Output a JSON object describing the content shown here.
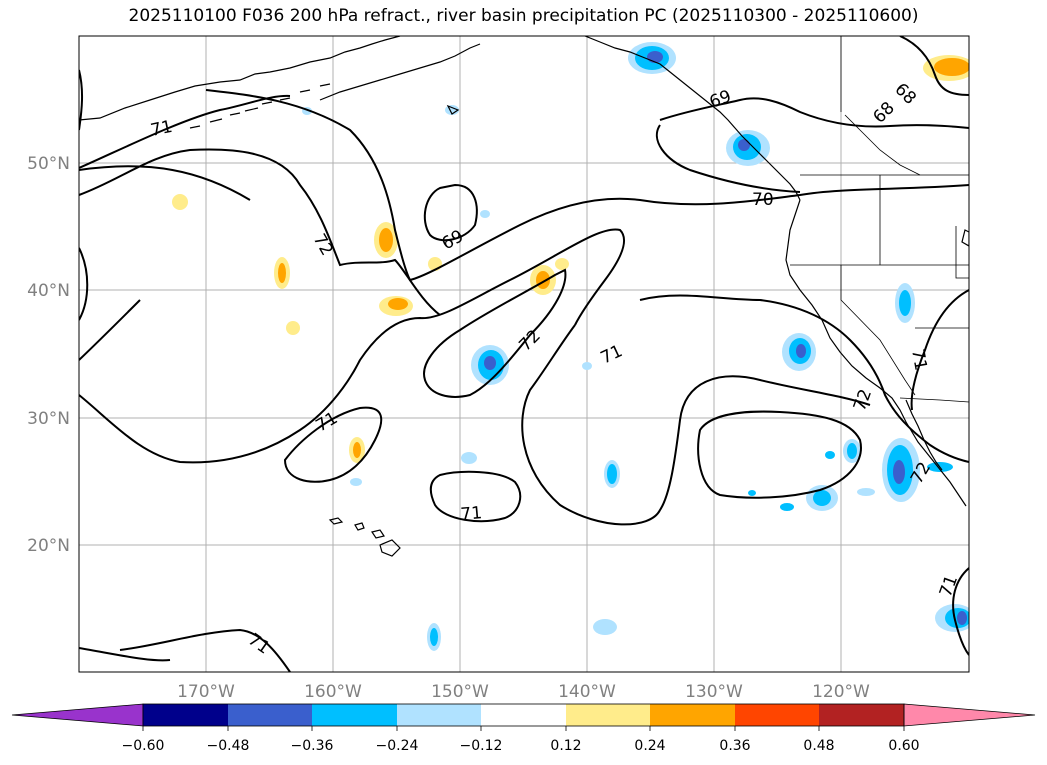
{
  "title": "2025110100 F036 200 hPa refract., river basin precipitation PC (2025110300 - 2025110600)",
  "lat_labels": [
    "50°N",
    "40°N",
    "30°N",
    "20°N"
  ],
  "lon_labels": [
    "170°W",
    "160°W",
    "150°W",
    "140°W",
    "130°W",
    "120°W"
  ],
  "contour_labels": [
    "71",
    "72",
    "69",
    "72",
    "71",
    "70",
    "69",
    "68",
    "68",
    "71",
    "71",
    "72",
    "71",
    "71",
    "72",
    "71"
  ],
  "colorbar": {
    "ticks": [
      "−0.60",
      "−0.48",
      "−0.36",
      "−0.24",
      "−0.12",
      "0.12",
      "0.24",
      "0.36",
      "0.48",
      "0.60"
    ],
    "colors": [
      "#9933cc",
      "#00008b",
      "#3a5fcd",
      "#00bfff",
      "#b0e2ff",
      "#ffffff",
      "#ffec8b",
      "#ffa500",
      "#ff4500",
      "#b22222",
      "#ff88aa"
    ]
  },
  "map_colors": {
    "land": "#000000",
    "contour": "#000000",
    "grid": "#b0b0b0",
    "pos_light": "#ffec8b",
    "pos_mid": "#ffa500",
    "neg_light": "#b0e2ff",
    "neg_mid": "#00bfff",
    "neg_dark": "#3a5fcd"
  }
}
